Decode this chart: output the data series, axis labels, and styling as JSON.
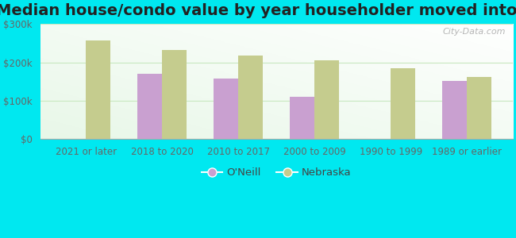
{
  "title": "Median house/condo value by year householder moved into unit",
  "categories": [
    "2021 or later",
    "2018 to 2020",
    "2010 to 2017",
    "2000 to 2009",
    "1990 to 1999",
    "1989 or earlier"
  ],
  "oneill_values": [
    null,
    170000,
    158000,
    110000,
    null,
    152000
  ],
  "nebraska_values": [
    258000,
    232000,
    218000,
    205000,
    185000,
    163000
  ],
  "oneill_color": "#c9a0d0",
  "nebraska_color": "#c5cc8e",
  "figure_bg": "#00e8f0",
  "plot_bg": "#e8f8e8",
  "ylim": [
    0,
    300000
  ],
  "yticks": [
    0,
    100000,
    200000,
    300000
  ],
  "ytick_labels": [
    "$0",
    "$100k",
    "$200k",
    "$300k"
  ],
  "bar_width": 0.32,
  "watermark": "City-Data.com",
  "legend_labels": [
    "O'Neill",
    "Nebraska"
  ],
  "title_fontsize": 14,
  "tick_fontsize": 8.5,
  "legend_fontsize": 9.5,
  "grid_color": "#c8e8c0",
  "spine_color": "#aaaaaa",
  "tick_color": "#666666"
}
